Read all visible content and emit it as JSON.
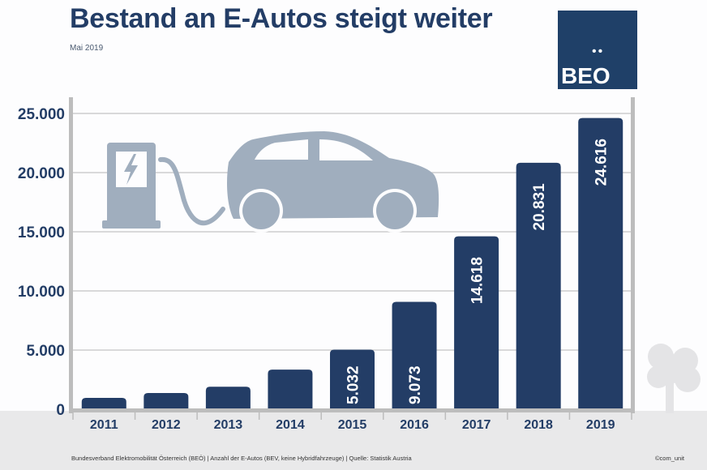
{
  "header": {
    "title": "Bestand an E-Autos steigt weiter",
    "subtitle": "Mai 2019",
    "logo_text": "BEO",
    "logo_dots": "••"
  },
  "colors": {
    "bar": "#233d66",
    "text": "#233d66",
    "logo_bg": "#1f4068",
    "illustration": "#a0aebe",
    "ground": "#e9e9ea",
    "tree": "#e4e4e6"
  },
  "chart_data": {
    "type": "bar",
    "title": "Bestand an E-Autos steigt weiter",
    "xlabel": "",
    "ylabel": "",
    "categories": [
      "2011",
      "2012",
      "2013",
      "2014",
      "2015",
      "2016",
      "2017",
      "2018",
      "2019"
    ],
    "values": [
      960,
      1370,
      1900,
      3350,
      5032,
      9073,
      14618,
      20831,
      24616
    ],
    "data_labels": [
      "",
      "",
      "",
      "",
      "5.032",
      "9.073",
      "14.618",
      "20.831",
      "24.616"
    ],
    "yticks": [
      0,
      5000,
      10000,
      15000,
      20000,
      25000
    ],
    "ytick_labels": [
      "0",
      "5.000",
      "10.000",
      "15.000",
      "20.000",
      "25.000"
    ],
    "ylim": [
      0,
      25000
    ],
    "grid": true,
    "legend": "none"
  },
  "footer": {
    "source": "Bundesverband Elektromobilität Österreich (BEÖ) | Anzahl der E-Autos (BEV, keine Hybridfahrzeuge) | Quelle: Statistik Austria",
    "credit": "©com_unit"
  }
}
